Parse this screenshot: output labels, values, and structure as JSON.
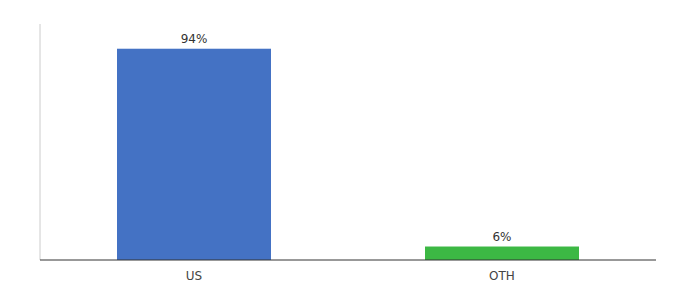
{
  "chart_data": {
    "type": "bar",
    "categories": [
      "US",
      "OTH"
    ],
    "values": [
      94,
      6
    ],
    "value_labels": [
      "94%",
      "6%"
    ],
    "colors": [
      "#4472c4",
      "#3cb844"
    ],
    "ylim": [
      0,
      105
    ],
    "data_labels": true,
    "tick_labels": "x",
    "grid": false
  }
}
